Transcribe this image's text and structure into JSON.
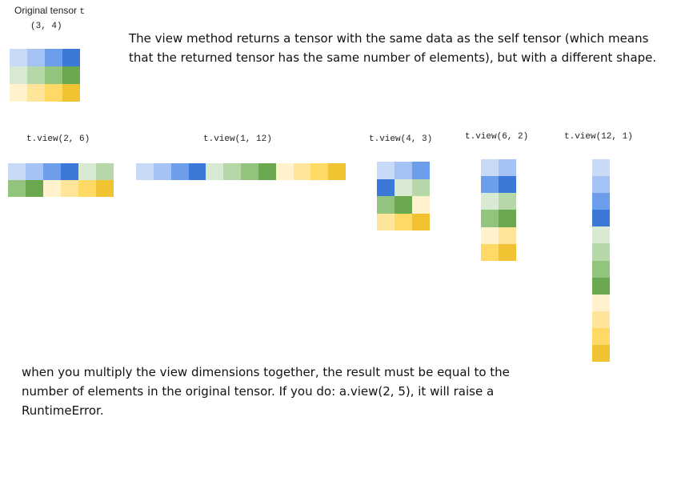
{
  "original": {
    "label_text": "Original tensor",
    "label_var": "t",
    "shape": "(3, 4)"
  },
  "description": "The view method returns a tensor with the same data as the self tensor (which means that the returned tensor has the same number of elements), but with a different shape.",
  "note": "when you multiply the view dimensions together, the result must be equal to the number of elements in the original tensor. If you do: a.view(2, 5), it will raise a RuntimeError.",
  "element_colors": [
    "#c9daf8",
    "#a4c2f4",
    "#6d9eeb",
    "#3c78d8",
    "#d9ead3",
    "#b6d7a8",
    "#93c47d",
    "#6aa84f",
    "#fff2cc",
    "#ffe599",
    "#ffd966",
    "#f1c232"
  ],
  "views": [
    {
      "id": "view-2-6",
      "label": "t.view(2, 6)",
      "rows": 2,
      "cols": 6
    },
    {
      "id": "view-1-12",
      "label": "t.view(1, 12)",
      "rows": 1,
      "cols": 12
    },
    {
      "id": "view-4-3",
      "label": "t.view(4, 3)",
      "rows": 4,
      "cols": 3
    },
    {
      "id": "view-6-2",
      "label": "t.view(6, 2)",
      "rows": 6,
      "cols": 2
    },
    {
      "id": "view-12-1",
      "label": "t.view(12, 1)",
      "rows": 12,
      "cols": 1
    }
  ]
}
